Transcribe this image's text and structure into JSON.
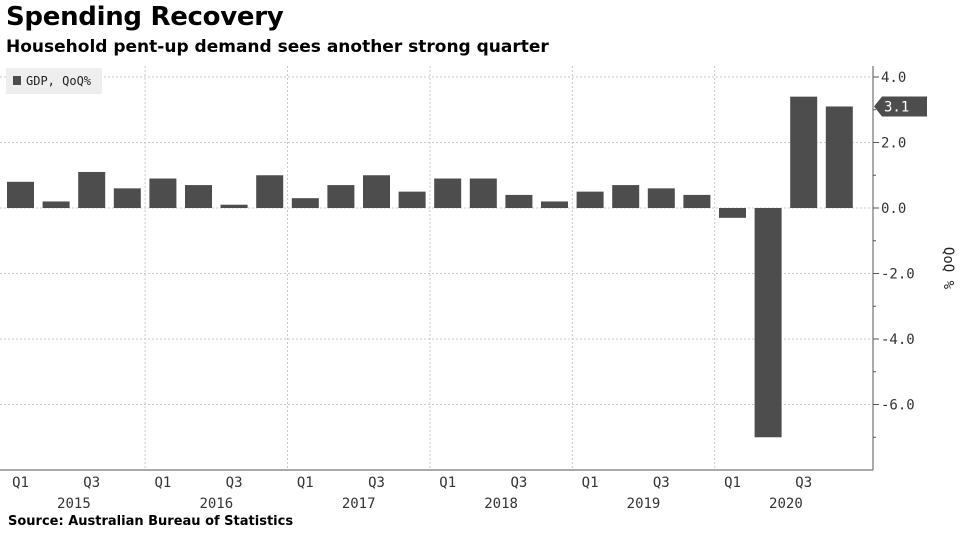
{
  "header": {
    "title": "Spending Recovery",
    "subtitle": "Household pent-up demand sees another strong quarter"
  },
  "footer": {
    "source": "Source: Australian Bureau of Statistics"
  },
  "colors": {
    "bar": "#4d4d4d",
    "grid": "#c8c8c8",
    "label_bg": "#4d4d4d",
    "label_text": "#ffffff"
  },
  "chart_data": {
    "type": "bar",
    "legend": {
      "entries": [
        "GDP, QoQ%"
      ],
      "placement": "top-left"
    },
    "ylabel": "QoQ %",
    "ylim": [
      -8,
      4.5
    ],
    "yticks": [
      4,
      2,
      0,
      -2,
      -4,
      -6
    ],
    "ytick_labels": [
      "4.0",
      "2.0",
      "0.0",
      "-2.0",
      "-4.0",
      "-6.0"
    ],
    "grid": true,
    "x_quarter_labels": [
      "Q1",
      "Q3",
      "Q1",
      "Q3",
      "Q1",
      "Q3",
      "Q1",
      "Q3",
      "Q1",
      "Q3",
      "Q1",
      "Q3"
    ],
    "x_year_labels": [
      "2015",
      "2016",
      "2017",
      "2018",
      "2019",
      "2020"
    ],
    "categories": [
      "2015 Q1",
      "2015 Q2",
      "2015 Q3",
      "2015 Q4",
      "2016 Q1",
      "2016 Q2",
      "2016 Q3",
      "2016 Q4",
      "2017 Q1",
      "2017 Q2",
      "2017 Q3",
      "2017 Q4",
      "2018 Q1",
      "2018 Q2",
      "2018 Q3",
      "2018 Q4",
      "2019 Q1",
      "2019 Q2",
      "2019 Q3",
      "2019 Q4",
      "2020 Q1",
      "2020 Q2",
      "2020 Q3",
      "2020 Q4"
    ],
    "series": [
      {
        "name": "GDP, QoQ%",
        "values": [
          0.8,
          0.2,
          1.1,
          0.6,
          0.9,
          0.7,
          0.1,
          1.0,
          0.3,
          0.7,
          1.0,
          0.5,
          0.9,
          0.9,
          0.4,
          0.2,
          0.5,
          0.7,
          0.6,
          0.4,
          -0.3,
          -7.0,
          3.4,
          3.1
        ]
      }
    ],
    "last_value_label": "3.1"
  }
}
